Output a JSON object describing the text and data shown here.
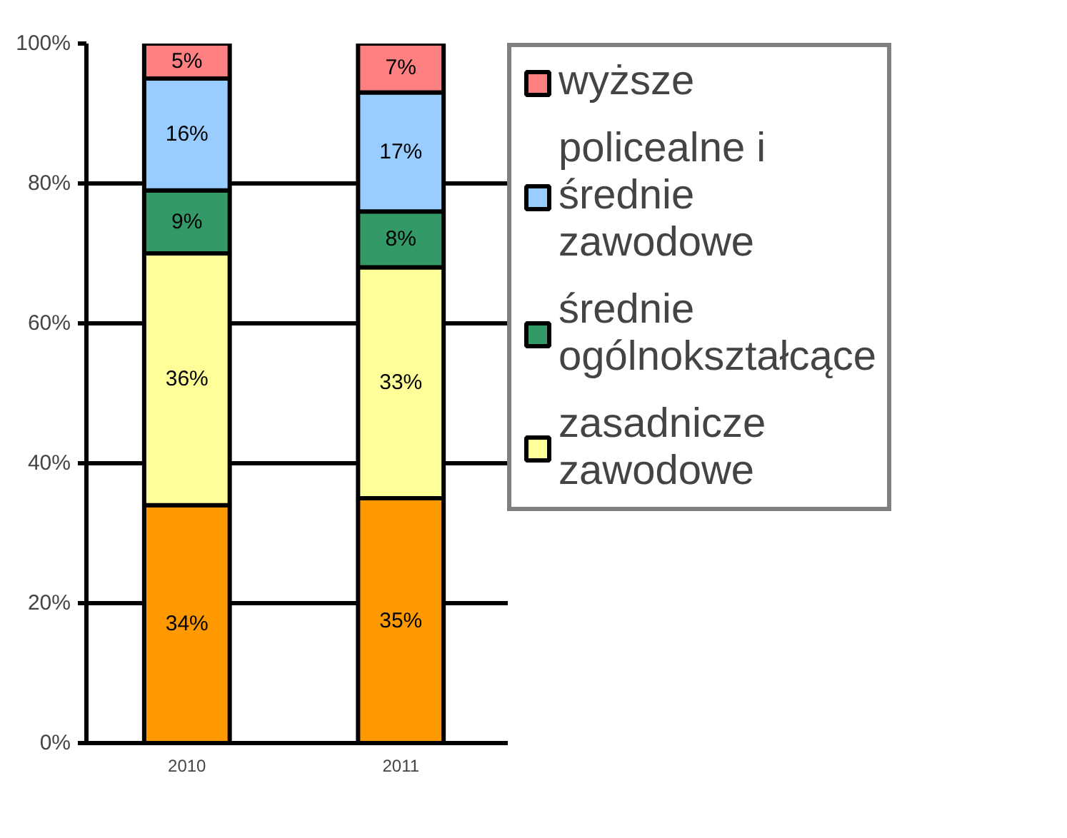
{
  "chart_data": {
    "type": "bar",
    "stacked": true,
    "categories": [
      "2010",
      "2011"
    ],
    "series": [
      {
        "color": "#ff9900",
        "values": [
          34,
          35
        ],
        "value_labels": [
          "34%",
          "35%"
        ]
      },
      {
        "name": "zasadnicze zawodowe",
        "color": "#ffff99",
        "values": [
          36,
          33
        ],
        "value_labels": [
          "36%",
          "33%"
        ]
      },
      {
        "name": "średnie ogólnokształcące",
        "color": "#339966",
        "values": [
          9,
          8
        ],
        "value_labels": [
          "9%",
          "8%"
        ]
      },
      {
        "name": "policealne i średnie zawodowe",
        "color": "#99ccff",
        "values": [
          16,
          17
        ],
        "value_labels": [
          "16%",
          "17%"
        ]
      },
      {
        "name": "wyższe",
        "color": "#ff8080",
        "values": [
          5,
          7
        ],
        "value_labels": [
          "5%",
          "7%"
        ]
      }
    ],
    "ylim": [
      0,
      100
    ],
    "yticks": [
      {
        "value": 0,
        "label": "0%"
      },
      {
        "value": 20,
        "label": "20%"
      },
      {
        "value": 40,
        "label": "40%"
      },
      {
        "value": 60,
        "label": "60%"
      },
      {
        "value": 80,
        "label": "80%"
      },
      {
        "value": 100,
        "label": "100%"
      }
    ],
    "grid": "y",
    "legend": "right"
  }
}
